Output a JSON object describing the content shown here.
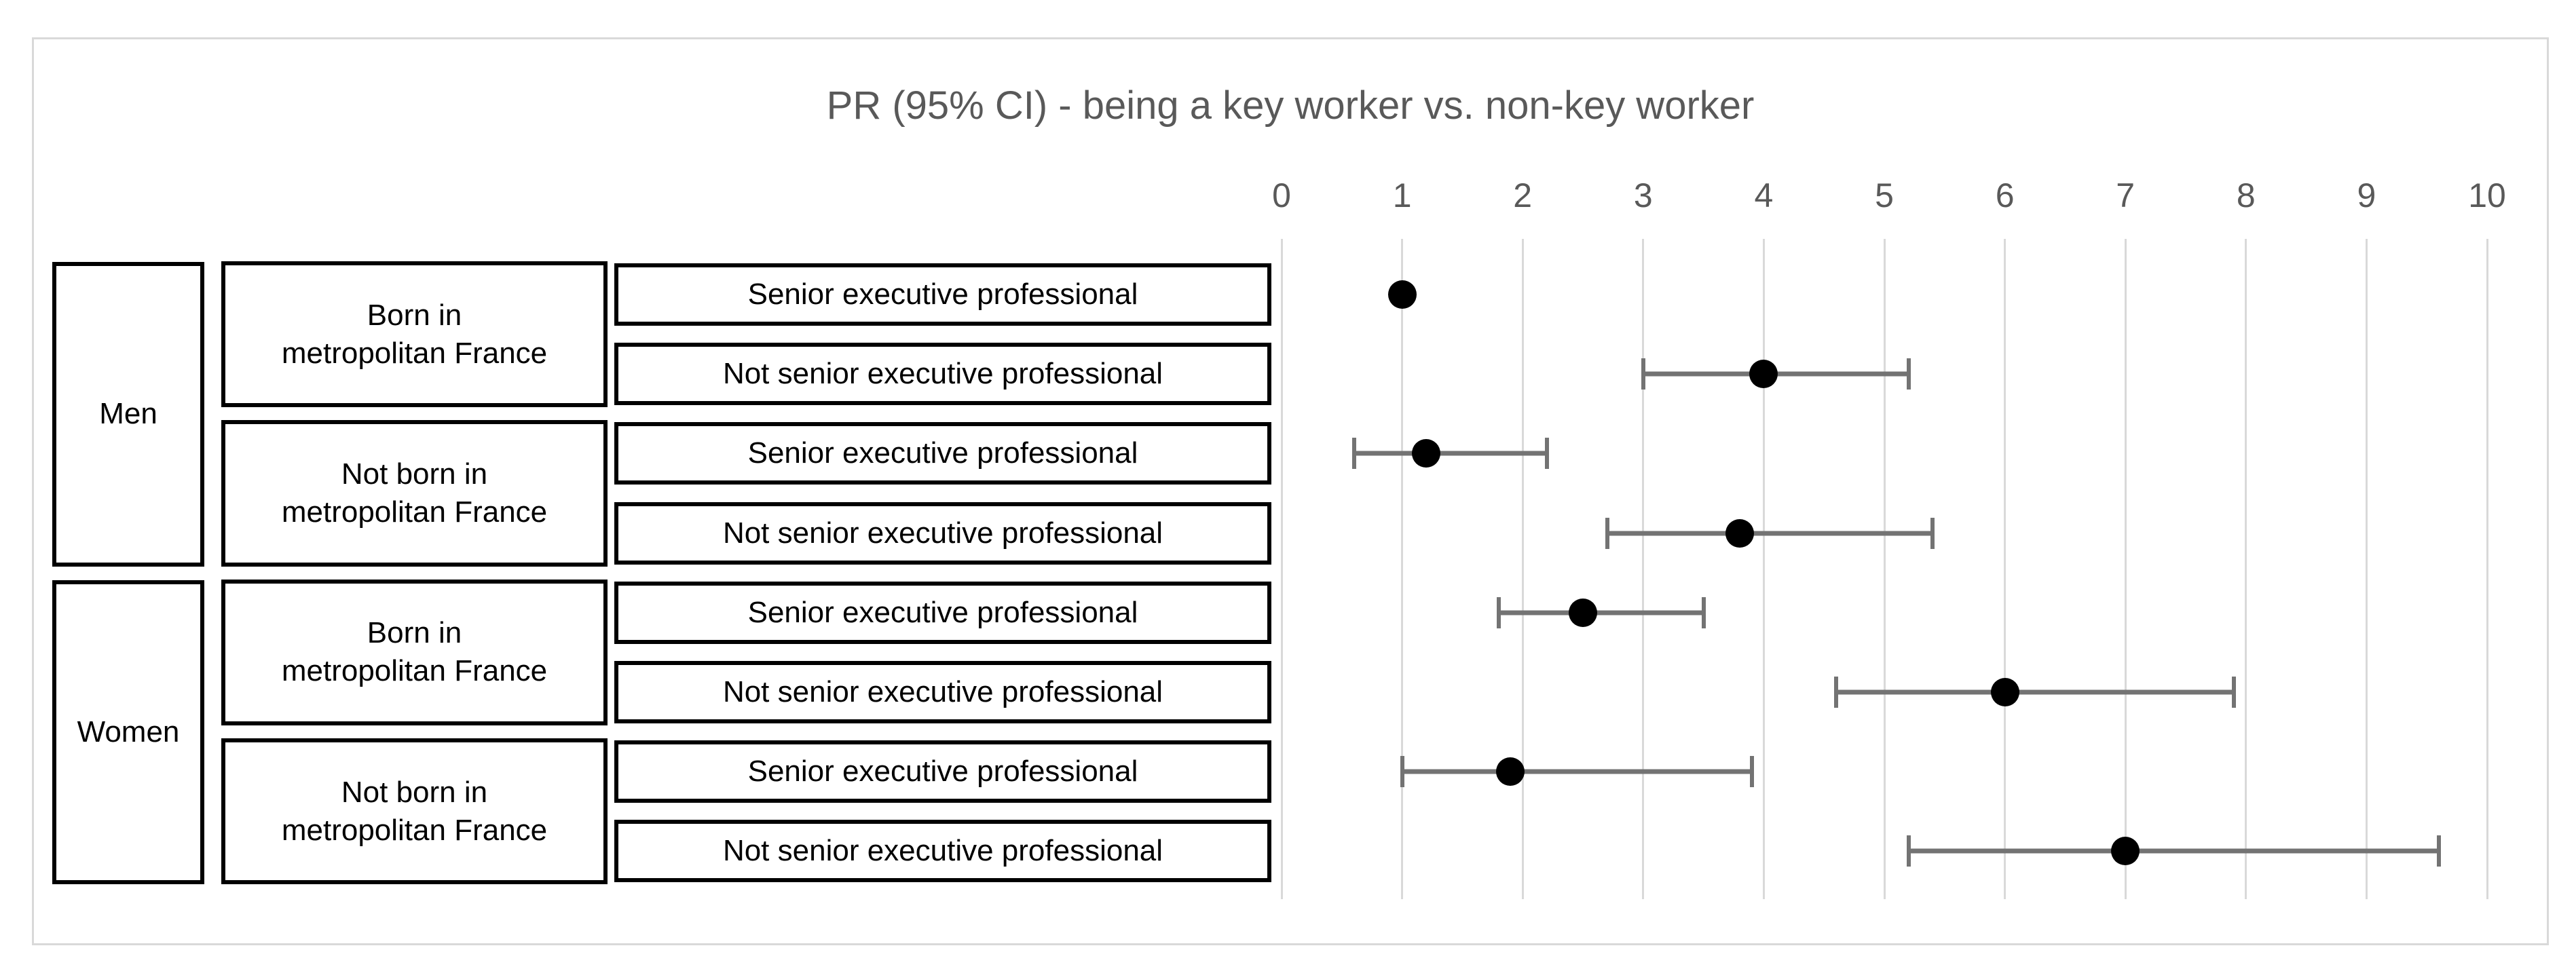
{
  "chart_data": {
    "type": "scatter",
    "subtype": "forest-plot",
    "title": "PR (95% CI) - being a key worker vs. non-key worker",
    "xlabel": "",
    "ylabel": "",
    "xlim": [
      0,
      10
    ],
    "x_ticks": [
      0,
      1,
      2,
      3,
      4,
      5,
      6,
      7,
      8,
      9,
      10
    ],
    "grid": "vertical-light-gray",
    "legend": "none",
    "rows": [
      {
        "gender": "Men",
        "origin": "Born in\nmetropolitan France",
        "occupation": "Senior executive professional",
        "pr": 1.0,
        "ci_low": null,
        "ci_high": null
      },
      {
        "gender": "Men",
        "origin": "Born in\nmetropolitan France",
        "occupation": "Not senior executive professional",
        "pr": 4.0,
        "ci_low": 3.0,
        "ci_high": 5.2
      },
      {
        "gender": "Men",
        "origin": "Not born in\nmetropolitan France",
        "occupation": "Senior executive professional",
        "pr": 1.2,
        "ci_low": 0.6,
        "ci_high": 2.2
      },
      {
        "gender": "Men",
        "origin": "Not born in\nmetropolitan France",
        "occupation": "Not senior executive professional",
        "pr": 3.8,
        "ci_low": 2.7,
        "ci_high": 5.4
      },
      {
        "gender": "Women",
        "origin": "Born in\nmetropolitan France",
        "occupation": "Senior executive professional",
        "pr": 2.5,
        "ci_low": 1.8,
        "ci_high": 3.5
      },
      {
        "gender": "Women",
        "origin": "Born in\nmetropolitan France",
        "occupation": "Not senior executive professional",
        "pr": 6.0,
        "ci_low": 4.6,
        "ci_high": 7.9
      },
      {
        "gender": "Women",
        "origin": "Not born in\nmetropolitan France",
        "occupation": "Senior executive professional",
        "pr": 1.9,
        "ci_low": 1.0,
        "ci_high": 3.9
      },
      {
        "gender": "Women",
        "origin": "Not born in\nmetropolitan France",
        "occupation": "Not senior executive professional",
        "pr": 7.0,
        "ci_low": 5.2,
        "ci_high": 9.6
      }
    ],
    "gender_groups": [
      {
        "label": "Men",
        "row_span": [
          0,
          3
        ]
      },
      {
        "label": "Women",
        "row_span": [
          4,
          7
        ]
      }
    ],
    "origin_groups": [
      {
        "label": "Born in\nmetropolitan France",
        "row_span": [
          0,
          1
        ]
      },
      {
        "label": "Not born in\nmetropolitan France",
        "row_span": [
          2,
          3
        ]
      },
      {
        "label": "Born in\nmetropolitan France",
        "row_span": [
          4,
          5
        ]
      },
      {
        "label": "Not born in\nmetropolitan France",
        "row_span": [
          6,
          7
        ]
      }
    ]
  },
  "colors": {
    "marker": "#000000",
    "error_bar": "#737373",
    "gridline": "#d9d9d9",
    "frame_border": "#d9d9d9",
    "title_text": "#595959",
    "tick_text": "#595959",
    "box_border": "#000000",
    "box_fill": "#ffffff",
    "background": "#ffffff"
  }
}
